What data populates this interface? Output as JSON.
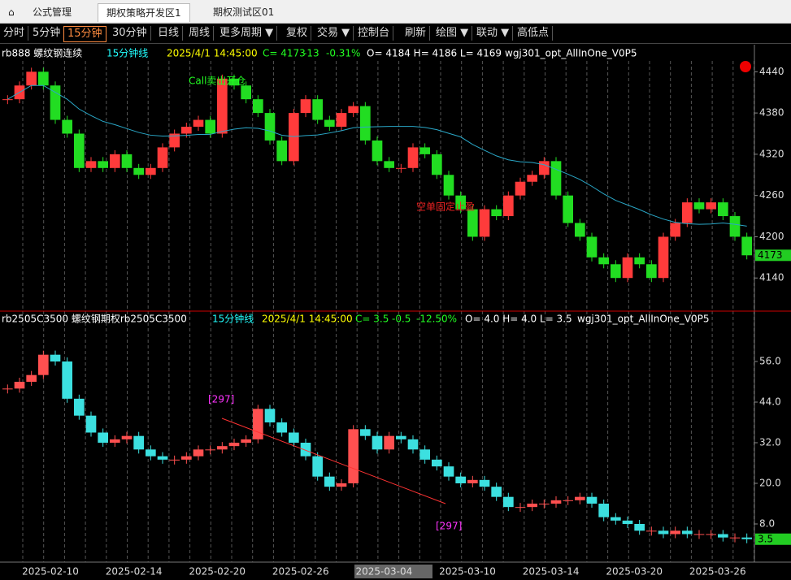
{
  "tabs": [
    "公式管理",
    "期权策略开发区1",
    "期权测试区01"
  ],
  "toolbar": [
    "分时",
    "5分钟",
    "15分钟",
    "30分钟",
    "日线",
    "周线",
    "更多周期 ▼",
    "复权",
    "交易 ▼",
    "控制台",
    "刷新",
    "绘图 ▼",
    "联动 ▼",
    "高低点"
  ],
  "upper": {
    "header": [
      "rb888 螺纹钢连续",
      "15分钟线",
      "2025/4/1 14:45:00",
      "C= 4173",
      "-13",
      "-0.31%",
      "O= 4184 H= 4186 L= 4169",
      "wgj301_opt_AllInOne_V0P5"
    ],
    "ylim": [
      4093,
      4477
    ],
    "yticks": [
      4440,
      4380,
      4320,
      4260,
      4200,
      4140
    ],
    "last": 4173,
    "annotations": [
      "Call卖出开仓",
      "空单固定止盈"
    ],
    "values": [
      4400,
      4420,
      4440,
      4420,
      4370,
      4350,
      4300,
      4310,
      4300,
      4320,
      4300,
      4290,
      4300,
      4330,
      4350,
      4360,
      4370,
      4350,
      4430,
      4420,
      4400,
      4380,
      4340,
      4310,
      4380,
      4400,
      4370,
      4360,
      4380,
      4390,
      4340,
      4310,
      4300,
      4300,
      4330,
      4320,
      4290,
      4260,
      4240,
      4200,
      4240,
      4230,
      4260,
      4280,
      4290,
      4310,
      4260,
      4220,
      4200,
      4170,
      4160,
      4140,
      4170,
      4160,
      4140,
      4200,
      4220,
      4250,
      4240,
      4250,
      4230,
      4200,
      4173
    ]
  },
  "lower": {
    "header": [
      "rb2505C3500 螺纹钢期权rb2505C3500",
      "15分钟线",
      "2025/4/1 14:45:00",
      "C= 3.5",
      "-0.5",
      "-12.50%",
      "O= 4.0 H= 4.0 L= 3.5",
      "wgj301_opt_AllInOne_V0P5"
    ],
    "ylim": [
      -2.8,
      66.8
    ],
    "yticks": [
      {
        "value": 56,
        "label": "56.0"
      },
      {
        "value": 44,
        "label": "44.0"
      },
      {
        "value": 32,
        "label": "32.0"
      },
      {
        "value": 20,
        "label": "20.0"
      },
      {
        "value": 8,
        "label": "8.0"
      }
    ],
    "last": 3.5,
    "annotations": [
      "[297]",
      "[297]"
    ],
    "values": [
      48,
      50,
      52,
      58,
      56,
      45,
      40,
      35,
      32,
      33,
      34,
      30,
      28,
      27,
      27,
      28,
      30,
      30,
      31,
      32,
      33,
      42,
      38,
      35,
      32,
      28,
      22,
      19,
      20,
      36,
      34,
      30,
      34,
      33,
      30,
      27,
      25,
      22,
      20,
      21,
      19,
      16,
      13,
      13,
      14,
      14,
      15,
      15,
      16,
      14,
      10,
      9,
      8,
      6,
      6,
      5,
      6,
      5,
      5,
      5,
      4,
      4,
      3.5
    ]
  },
  "dates": [
    "2025-02-10",
    "2025-02-14",
    "2025-02-20",
    "2025-02-26",
    "2025-03-04",
    "2025-03-10",
    "2025-03-14",
    "2025-03-20",
    "2025-03-26"
  ]
}
